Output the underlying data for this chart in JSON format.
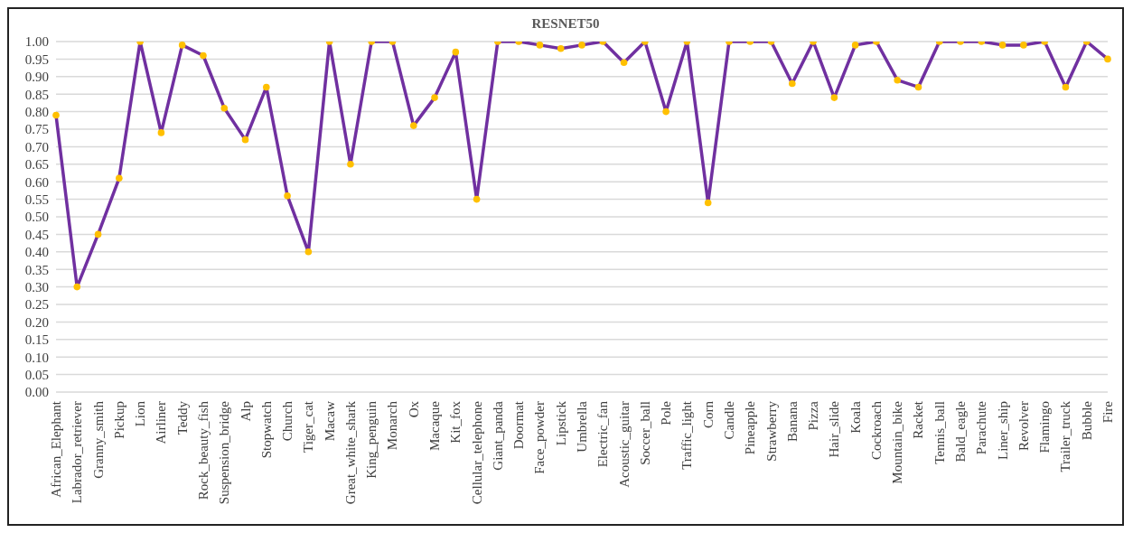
{
  "chart_data": {
    "type": "line",
    "title": "RESNET50",
    "categories": [
      "African_Elephant",
      "Labrador_retriever",
      "Granny_smith",
      "Pickup",
      "Lion",
      "Airliner",
      "Teddy",
      "Rock_beauty_fish",
      "Suspension_bridge",
      "Alp",
      "Stopwatch",
      "Church",
      "Tiger_cat",
      "Macaw",
      "Great_white_shark",
      "King_penguin",
      "Monarch",
      "Ox",
      "Macaque",
      "Kit_fox",
      "Cellular_telephone",
      "Giant_panda",
      "Doormat",
      "Face_powder",
      "Lipstick",
      "Umbrella",
      "Electric_fan",
      "Acoustic_guitar",
      "Soccer_ball",
      "Pole",
      "Traffic_light",
      "Corn",
      "Candle",
      "Pineapple",
      "Strawberry",
      "Banana",
      "Pizza",
      "Hair_slide",
      "Koala",
      "Cockroach",
      "Mountain_bike",
      "Racket",
      "Tennis_ball",
      "Bald_eagle",
      "Parachute",
      "Liner_ship",
      "Revolver",
      "Flamingo",
      "Trailer_truck",
      "Bubble",
      "Fire"
    ],
    "series": [
      {
        "color": "#7030a0",
        "values": [
          0.79,
          0.3,
          0.45,
          0.61,
          1.0,
          0.74,
          0.99,
          0.96,
          0.81,
          0.72,
          0.87,
          0.56,
          0.4,
          1.0,
          0.65,
          1.0,
          1.0,
          0.76,
          0.84,
          0.97,
          0.55,
          1.0,
          1.0,
          0.99,
          0.98,
          0.99,
          1.0,
          0.94,
          1.0,
          0.8,
          1.0,
          0.54,
          1.0,
          1.0,
          1.0,
          0.88,
          1.0,
          0.84,
          0.99,
          1.0,
          0.89,
          0.87,
          1.0,
          1.0,
          1.0,
          0.99,
          0.99,
          1.0,
          0.87,
          1.0,
          0.95
        ],
        "colors": [
          "#ffc000",
          "#ffc000",
          "#ffc000",
          "#ffc000",
          "#ffc000",
          "#ffc000",
          "#ffc000",
          "#ffc000",
          "#ffc000",
          "#ffc000",
          "#ffc000",
          "#ffc000",
          "#ffc000",
          "#ffc000",
          "#ffc000",
          "#ffc000",
          "#ffc000",
          "#ffc000",
          "#ffc000",
          "#ffc000",
          "#ffc000",
          "#ffc000",
          "#ffc000",
          "#ffc000",
          "#ffc000",
          "#ffc000",
          "#ffc000",
          "#ffc000",
          "#ffc000",
          "#ffc000",
          "#ffc000",
          "#ffc000",
          "#ffc000",
          "#ffc000",
          "#ffc000",
          "#ffc000",
          "#ffc000",
          "#ffc000",
          "#ffc000",
          "#ffc000",
          "#ffc000",
          "#ffc000",
          "#ffc000",
          "#ffc000",
          "#ffc000",
          "#ffc000",
          "#ffc000",
          "#ffc000",
          "#ffc000",
          "#ffc000",
          "#ffc000"
        ]
      }
    ],
    "ylim": [
      0,
      1
    ],
    "yticks": [
      {
        "value": 0,
        "label": "0.00"
      },
      {
        "value": 0.05,
        "label": "0.05"
      },
      {
        "value": 0.1,
        "label": "0.10"
      },
      {
        "value": 0.15,
        "label": "0.15"
      },
      {
        "value": 0.2,
        "label": "0.20"
      },
      {
        "value": 0.25,
        "label": "0.25"
      },
      {
        "value": 0.3,
        "label": "0.30"
      },
      {
        "value": 0.35,
        "label": "0.35"
      },
      {
        "value": 0.4,
        "label": "0.40"
      },
      {
        "value": 0.45,
        "label": "0.45"
      },
      {
        "value": 0.5,
        "label": "0.50"
      },
      {
        "value": 0.55,
        "label": "0.55"
      },
      {
        "value": 0.6,
        "label": "0.60"
      },
      {
        "value": 0.65,
        "label": "0.65"
      },
      {
        "value": 0.7,
        "label": "0.70"
      },
      {
        "value": 0.75,
        "label": "0.75"
      },
      {
        "value": 0.8,
        "label": "0.80"
      },
      {
        "value": 0.85,
        "label": "0.85"
      },
      {
        "value": 0.9,
        "label": "0.90"
      },
      {
        "value": 0.95,
        "label": "0.95"
      },
      {
        "value": 1,
        "label": "1.00"
      }
    ],
    "grid": "y",
    "marker": "circle",
    "line_style": "solid",
    "legend": false
  }
}
